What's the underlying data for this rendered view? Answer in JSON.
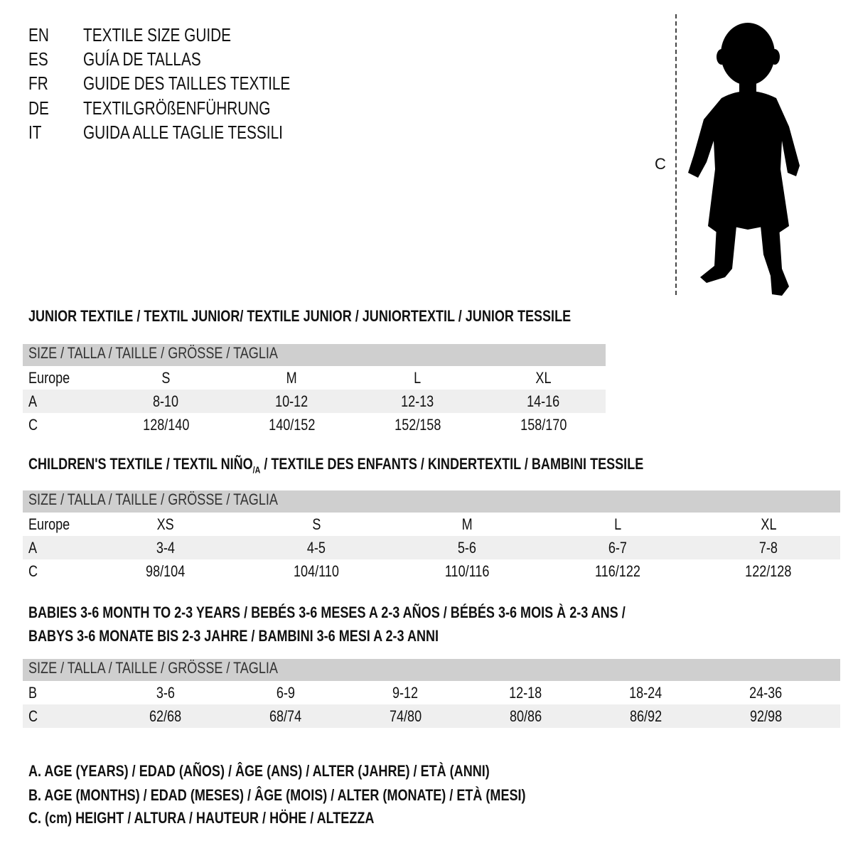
{
  "title_lines": [
    {
      "code": "EN",
      "text": "TEXTILE SIZE GUIDE"
    },
    {
      "code": "ES",
      "text": "GUÍA DE TALLAS"
    },
    {
      "code": "FR",
      "text": "GUIDE DES TAILLES TEXTILE"
    },
    {
      "code": "DE",
      "text": "TEXTILGRÖßENFÜHRUNG"
    },
    {
      "code": "IT",
      "text": "GUIDA ALLE TAGLIE TESSILI"
    }
  ],
  "figure": {
    "measure_label": "C",
    "icon": "child-silhouette-icon"
  },
  "junior": {
    "heading": "JUNIOR TEXTILE / TEXTIL JUNIOR/ TEXTILE JUNIOR / JUNIORTEXTIL / JUNIOR TESSILE",
    "size_header": "SIZE / TALLA / TAILLE / GRÖSSE / TAGLIA",
    "rows": [
      {
        "label": "Europe",
        "values": [
          "S",
          "M",
          "L",
          "XL"
        ],
        "shaded": false
      },
      {
        "label": "A",
        "values": [
          "8-10",
          "10-12",
          "12-13",
          "14-16"
        ],
        "shaded": true
      },
      {
        "label": "C",
        "values": [
          "128/140",
          "140/152",
          "152/158",
          "158/170"
        ],
        "shaded": false
      }
    ]
  },
  "children": {
    "heading_pre": "CHILDREN'S TEXTILE / TEXTIL NIÑO",
    "heading_sub": "/A",
    "heading_post": " / TEXTILE DES ENFANTS / KINDERTEXTIL / BAMBINI TESSILE",
    "size_header": "SIZE / TALLA / TAILLE / GRÖSSE / TAGLIA",
    "rows": [
      {
        "label": "Europe",
        "values": [
          "XS",
          "S",
          "M",
          "L",
          "XL"
        ],
        "shaded": false
      },
      {
        "label": "A",
        "values": [
          "3-4",
          "4-5",
          "5-6",
          "6-7",
          "7-8"
        ],
        "shaded": true
      },
      {
        "label": "C",
        "values": [
          "98/104",
          "104/110",
          "110/116",
          "116/122",
          "122/128"
        ],
        "shaded": false
      }
    ]
  },
  "babies": {
    "heading_line1": "BABIES 3-6 MONTH TO 2-3 YEARS / BEBÉS 3-6 MESES A 2-3 AÑOS / BÉBÉS 3-6 MOIS À 2-3 ANS /",
    "heading_line2": "BABYS 3-6 MONATE BIS 2-3 JAHRE / BAMBINI 3-6 MESI A 2-3 ANNI",
    "size_header": "SIZE / TALLA / TAILLE / GRÖSSE / TAGLIA",
    "rows": [
      {
        "label": "B",
        "values": [
          "3-6",
          "6-9",
          "9-12",
          "12-18",
          "18-24",
          "24-36"
        ],
        "shaded": false
      },
      {
        "label": "C",
        "values": [
          "62/68",
          "68/74",
          "74/80",
          "80/86",
          "86/92",
          "92/98"
        ],
        "shaded": true
      }
    ]
  },
  "legend": [
    "A. AGE (YEARS) / EDAD (AÑOS) / ÂGE (ANS) / ALTER (JAHRE) / ETÀ (ANNI)",
    "B. AGE (MONTHS) / EDAD (MESES) / ÂGE (MOIS) / ALTER (MONATE) / ETÀ (MESI)",
    "C. (cm) HEIGHT / ALTURA / HAUTEUR / HÖHE / ALTEZZA"
  ]
}
